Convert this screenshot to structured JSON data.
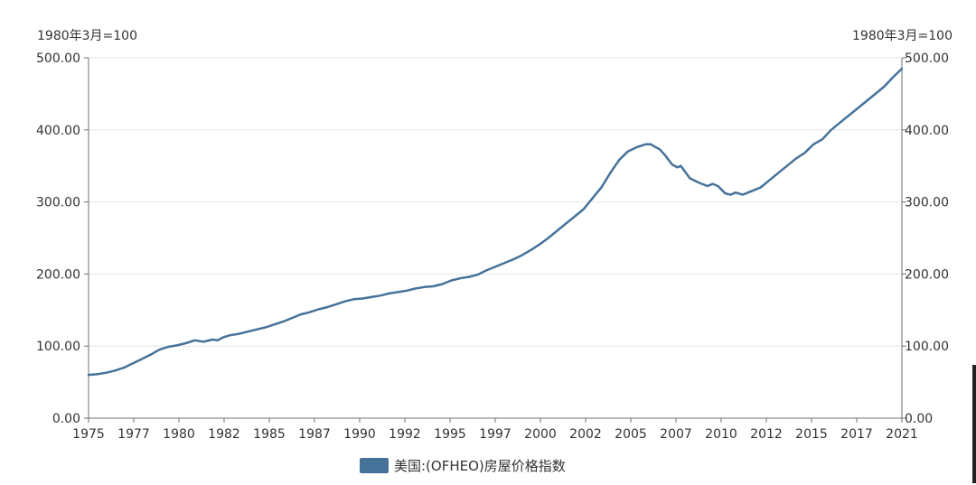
{
  "colors": {
    "series": "#467299",
    "axis": "#6e7079",
    "grid": "#e6e6e6",
    "text": "#333333"
  },
  "chart_data": {
    "type": "line",
    "title": "",
    "ylabel_left": "1980年3月=100",
    "ylabel_right": "1980年3月=100",
    "ylim": [
      0,
      500
    ],
    "xlim": [
      1975,
      2021
    ],
    "y_ticks": [
      "0.00",
      "100.00",
      "200.00",
      "300.00",
      "400.00",
      "500.00"
    ],
    "x_ticks": [
      "1975",
      "1977",
      "1980",
      "1982",
      "1985",
      "1987",
      "1990",
      "1992",
      "1995",
      "1997",
      "2000",
      "2002",
      "2005",
      "2007",
      "2010",
      "2012",
      "2015",
      "2017",
      "2021"
    ],
    "grid": true,
    "legend_position": "bottom",
    "series": [
      {
        "name": "美国:(OFHEO)房屋价格指数",
        "x": [
          1975.0,
          1975.5,
          1976.0,
          1976.5,
          1977.0,
          1977.5,
          1978.0,
          1978.5,
          1979.0,
          1979.5,
          1980.0,
          1980.5,
          1981.0,
          1981.5,
          1982.0,
          1982.3,
          1982.6,
          1983.0,
          1983.5,
          1984.0,
          1984.5,
          1985.0,
          1985.5,
          1986.0,
          1986.5,
          1987.0,
          1987.5,
          1988.0,
          1988.5,
          1989.0,
          1989.5,
          1990.0,
          1990.5,
          1991.0,
          1991.5,
          1992.0,
          1992.5,
          1993.0,
          1993.5,
          1994.0,
          1994.5,
          1995.0,
          1995.5,
          1996.0,
          1996.5,
          1997.0,
          1997.5,
          1998.0,
          1998.5,
          1999.0,
          1999.5,
          2000.0,
          2000.5,
          2001.0,
          2001.5,
          2002.0,
          2002.5,
          2003.0,
          2003.5,
          2004.0,
          2004.5,
          2005.0,
          2005.5,
          2006.0,
          2006.5,
          2006.8,
          2007.0,
          2007.3,
          2007.6,
          2008.0,
          2008.3,
          2008.5,
          2008.8,
          2009.0,
          2009.5,
          2010.0,
          2010.3,
          2010.6,
          2011.0,
          2011.3,
          2011.6,
          2012.0,
          2012.3,
          2012.6,
          2013.0,
          2013.5,
          2014.0,
          2014.5,
          2015.0,
          2015.5,
          2016.0,
          2016.5,
          2017.0,
          2017.5,
          2018.0,
          2018.5,
          2019.0,
          2019.5,
          2020.0,
          2020.5,
          2021.0
        ],
        "values": [
          60,
          61,
          63,
          66,
          70,
          76,
          82,
          88,
          95,
          99,
          101,
          104,
          108,
          106,
          109,
          108,
          112,
          115,
          117,
          120,
          123,
          126,
          130,
          134,
          139,
          144,
          147,
          151,
          154,
          158,
          162,
          165,
          166,
          168,
          170,
          173,
          175,
          177,
          180,
          182,
          183,
          186,
          191,
          194,
          196,
          199,
          205,
          210,
          215,
          220,
          226,
          233,
          241,
          250,
          260,
          270,
          280,
          290,
          305,
          320,
          340,
          358,
          370,
          376,
          380,
          380,
          377,
          373,
          365,
          352,
          348,
          350,
          340,
          333,
          327,
          322,
          325,
          322,
          312,
          310,
          313,
          310,
          313,
          316,
          320,
          330,
          340,
          350,
          360,
          368,
          380,
          387,
          400,
          410,
          420,
          430,
          440,
          450,
          460,
          473,
          485
        ]
      }
    ]
  }
}
